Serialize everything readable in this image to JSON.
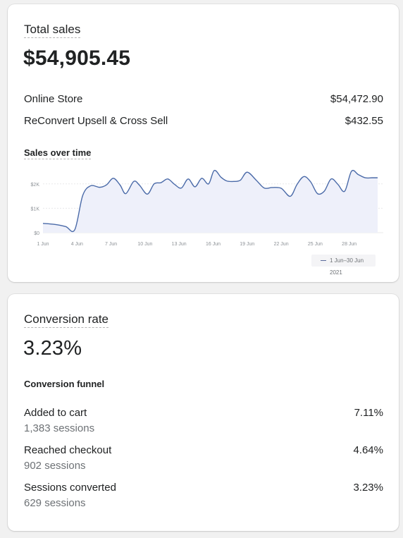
{
  "total_sales": {
    "title": "Total sales",
    "value": "$54,905.45",
    "rows": [
      {
        "label": "Online Store",
        "value": "$54,472.90"
      },
      {
        "label": "ReConvert Upsell & Cross Sell",
        "value": "$432.55"
      }
    ],
    "chart_title": "Sales over time"
  },
  "chart_data": {
    "type": "line",
    "title": "Sales over time",
    "xlabel": "",
    "ylabel": "",
    "x_ticks": [
      "1 Jun",
      "4 Jun",
      "7 Jun",
      "10 Jun",
      "13 Jun",
      "16 Jun",
      "19 Jun",
      "22 Jun",
      "25 Jun",
      "28 Jun"
    ],
    "y_ticks": [
      "$0",
      "$1K",
      "$2K"
    ],
    "ylim": [
      0,
      2600
    ],
    "xlim": [
      1,
      31
    ],
    "legend": {
      "label": "1 Jun–30 Jun 2021",
      "position": "bottom-right"
    },
    "series": [
      {
        "name": "1 Jun–30 Jun 2021",
        "color": "#4a6aa8",
        "x": [
          1,
          2,
          3,
          3.8,
          4.5,
          5.2,
          6,
          6.6,
          7.2,
          7.8,
          8.3,
          9,
          9.5,
          10.2,
          10.8,
          11.4,
          12,
          12.6,
          13.2,
          13.8,
          14.4,
          15,
          15.6,
          16.1,
          16.7,
          17.2,
          17.8,
          18.4,
          19,
          19.8,
          20.5,
          21.2,
          22,
          22.8,
          23.4,
          24,
          24.6,
          25.2,
          25.8,
          26.4,
          27,
          27.6,
          28.2,
          28.8,
          29.4,
          30,
          30.5
        ],
        "values": [
          380,
          340,
          250,
          120,
          1520,
          1920,
          1860,
          1960,
          2230,
          1950,
          1600,
          2100,
          1950,
          1580,
          2000,
          2050,
          2200,
          1980,
          1830,
          2200,
          1880,
          2230,
          2000,
          2550,
          2270,
          2120,
          2100,
          2150,
          2480,
          2150,
          1830,
          1850,
          1820,
          1490,
          1980,
          2300,
          2080,
          1600,
          1700,
          2200,
          1980,
          1700,
          2520,
          2380,
          2250,
          2250,
          2250
        ]
      }
    ]
  },
  "conversion": {
    "title": "Conversion rate",
    "value": "3.23%",
    "funnel_title": "Conversion funnel",
    "steps": [
      {
        "label": "Added to cart",
        "sessions": "1,383 sessions",
        "value": "7.11%"
      },
      {
        "label": "Reached checkout",
        "sessions": "902 sessions",
        "value": "4.64%"
      },
      {
        "label": "Sessions converted",
        "sessions": "629 sessions",
        "value": "3.23%"
      }
    ]
  }
}
